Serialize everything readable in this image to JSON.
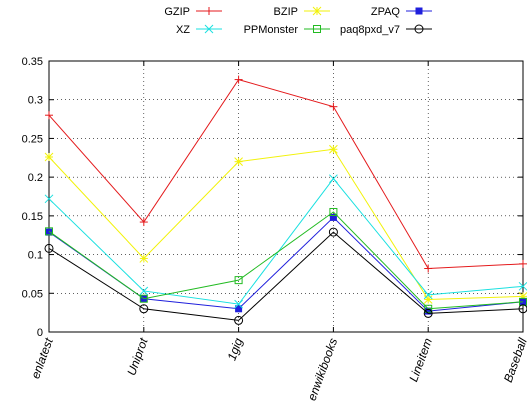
{
  "chart_data": {
    "type": "line",
    "title": "",
    "xlabel": "",
    "ylabel": "",
    "categories": [
      "enlatest",
      "Uniprot",
      "1gig",
      "enwikibooks",
      "Lineitem",
      "Baseball"
    ],
    "ylim": [
      0,
      0.35
    ],
    "yticks": [
      "0",
      "0.05",
      "0.1",
      "0.15",
      "0.2",
      "0.25",
      "0.3",
      "0.35"
    ],
    "grid": true,
    "legend_position": "top",
    "series": [
      {
        "name": "GZIP",
        "color": "#e41a1c",
        "marker": "plus",
        "values": [
          0.28,
          0.142,
          0.326,
          0.291,
          0.082,
          0.088
        ]
      },
      {
        "name": "BZIP",
        "color": "#f2f20a",
        "marker": "star",
        "values": [
          0.226,
          0.095,
          0.22,
          0.236,
          0.042,
          0.046
        ]
      },
      {
        "name": "ZPAQ",
        "color": "#1f1fdc",
        "marker": "square-filled",
        "values": [
          0.129,
          0.043,
          0.03,
          0.148,
          0.027,
          0.039
        ]
      },
      {
        "name": "XZ",
        "color": "#19e0e0",
        "marker": "cross",
        "values": [
          0.172,
          0.053,
          0.036,
          0.198,
          0.048,
          0.059
        ]
      },
      {
        "name": "PPMonster",
        "color": "#22bb22",
        "marker": "square-open",
        "values": [
          0.13,
          0.043,
          0.067,
          0.155,
          0.03,
          0.039
        ]
      },
      {
        "name": "paq8pxd_v7",
        "color": "#000000",
        "marker": "circle-open",
        "values": [
          0.108,
          0.03,
          0.015,
          0.129,
          0.024,
          0.03
        ]
      }
    ]
  }
}
